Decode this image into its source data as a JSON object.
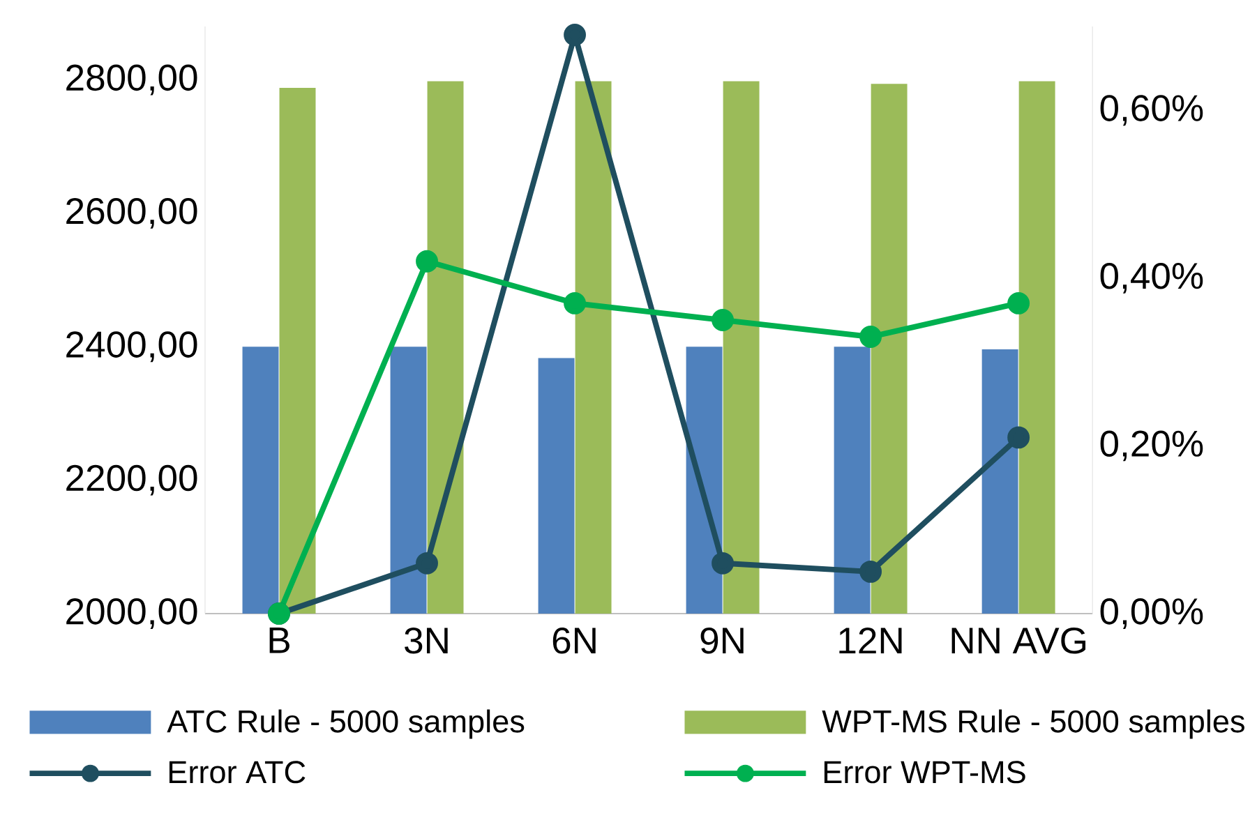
{
  "chart_data": {
    "type": "bar",
    "categories": [
      "B",
      "3N",
      "6N",
      "9N",
      "12N",
      "NN AVG"
    ],
    "series": [
      {
        "name": "ATC Rule - 5000 samples",
        "color": "#4f81bd",
        "values": [
          2400,
          2400,
          2383,
          2400,
          2400,
          2396
        ]
      },
      {
        "name": "WPT-MS Rule - 5000 samples",
        "color": "#9bbb59",
        "values": [
          2788,
          2798,
          2798,
          2798,
          2794,
          2798
        ]
      },
      {
        "name": "Error ATC",
        "type": "line",
        "axis": "y2",
        "color": "#1f4e5f",
        "values": [
          0,
          0.06,
          0.69,
          0.06,
          0.05,
          0.21
        ]
      },
      {
        "name": "Error WPT-MS",
        "type": "line",
        "axis": "y2",
        "color": "#00b050",
        "values": [
          0,
          0.42,
          0.37,
          0.35,
          0.33,
          0.37
        ]
      }
    ],
    "ylim": [
      2000,
      2880
    ],
    "yticks": [
      {
        "value": 2000,
        "label": "2000,00"
      },
      {
        "value": 2200,
        "label": "2200,00"
      },
      {
        "value": 2400,
        "label": "2400,00"
      },
      {
        "value": 2600,
        "label": "2600,00"
      },
      {
        "value": 2800,
        "label": "2800,00"
      }
    ],
    "y2lim": [
      0,
      0.7
    ],
    "y2ticks": [
      {
        "value": 0,
        "label": "0,00%"
      },
      {
        "value": 0.2,
        "label": "0,20%"
      },
      {
        "value": 0.4,
        "label": "0,40%"
      },
      {
        "value": 0.6,
        "label": "0,60%"
      }
    ],
    "legend": "bottom",
    "marker": "circle",
    "grid": false
  }
}
